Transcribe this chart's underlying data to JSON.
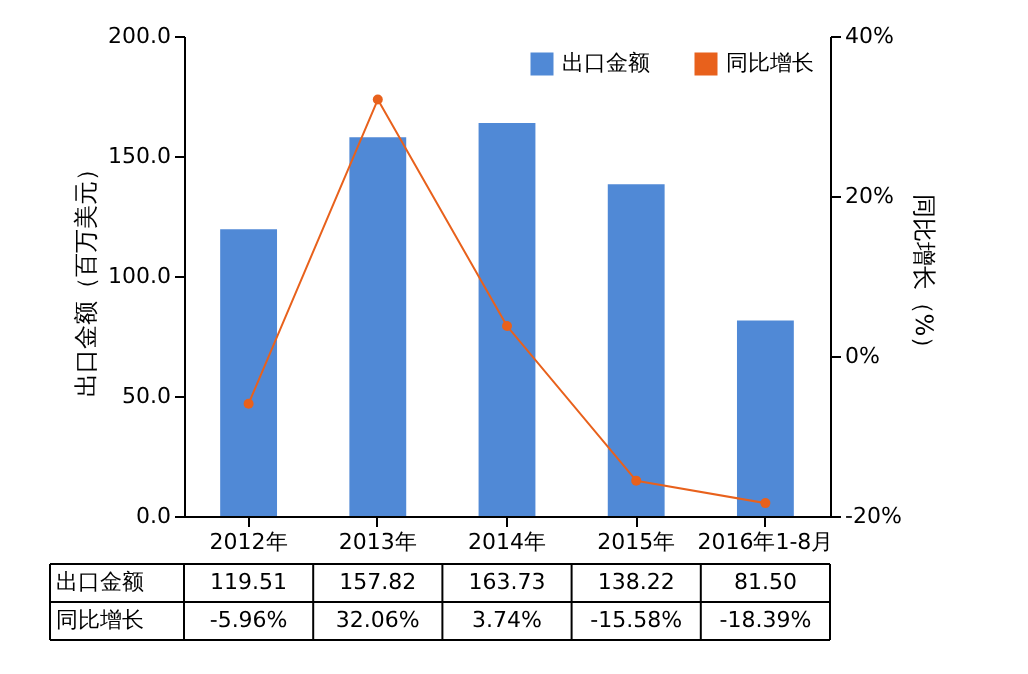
{
  "chart_data": {
    "type": "bar",
    "categories": [
      "2012年",
      "2013年",
      "2014年",
      "2015年",
      "2016年1-8月"
    ],
    "series": [
      {
        "name": "出口金额",
        "color": "#5089d6",
        "values": [
          119.51,
          157.82,
          163.73,
          138.22,
          81.5
        ],
        "value_labels": [
          "119.51",
          "157.82",
          "163.73",
          "138.22",
          "81.50"
        ]
      },
      {
        "name": "同比增长",
        "type": "line",
        "axis": "y2",
        "color": "#e8611c",
        "values": [
          -5.96,
          32.06,
          3.74,
          -15.58,
          -18.39
        ],
        "value_labels": [
          "-5.96%",
          "32.06%",
          "3.74%",
          "-15.58%",
          "-18.39%"
        ]
      }
    ],
    "ylim": [
      0,
      200
    ],
    "yticks": [
      {
        "value": 0,
        "label": "0.0"
      },
      {
        "value": 50,
        "label": "50.0"
      },
      {
        "value": 100,
        "label": "100.0"
      },
      {
        "value": 150,
        "label": "150.0"
      },
      {
        "value": 200,
        "label": "200.0"
      }
    ],
    "y2lim": [
      -20,
      40
    ],
    "y2ticks": [
      {
        "value": -20,
        "label": "-20%"
      },
      {
        "value": 0,
        "label": "0%"
      },
      {
        "value": 20,
        "label": "20%"
      },
      {
        "value": 40,
        "label": "40%"
      }
    ],
    "ylabel": "出口金额（百万美元）",
    "y2label": "同比增长（%）",
    "legend": "top right",
    "marker": "circle",
    "grid": false
  }
}
